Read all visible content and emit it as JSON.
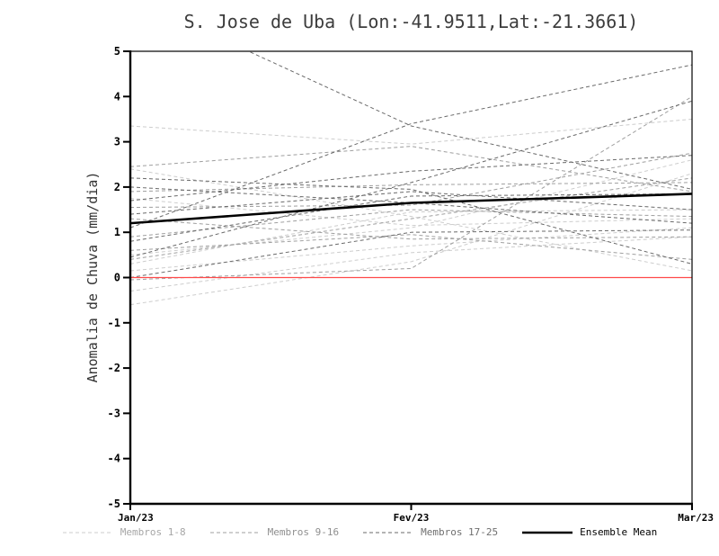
{
  "title": "S. Jose de Uba (Lon:-41.9511,Lat:-21.3661)",
  "chart_data": {
    "type": "line",
    "title": "S. Jose de Uba (Lon:-41.9511,Lat:-21.3661)",
    "xlabel": "",
    "ylabel": "Anomalia de Chuva (mm/dia)",
    "x_categories": [
      "Jan/23",
      "Fev/23",
      "Mar/23"
    ],
    "ylim": [
      -5,
      5
    ],
    "ytick_interval": 1,
    "grid": false,
    "zero_line": {
      "y": 0,
      "color": "#ff4a4a"
    },
    "groups": [
      {
        "name": "Membros 1-8",
        "color": "#cdcdcd",
        "dash": "4 3",
        "series": [
          [
            3.35,
            2.95,
            3.5
          ],
          [
            2.4,
            1.35,
            0.15
          ],
          [
            1.75,
            1.15,
            1.3
          ],
          [
            0.5,
            1.1,
            2.6
          ],
          [
            0.15,
            0.7,
            1.1
          ],
          [
            -0.3,
            0.55,
            0.9
          ],
          [
            -0.6,
            0.35,
            2.3
          ],
          [
            0.3,
            1.45,
            1.5
          ]
        ]
      },
      {
        "name": "Membros 9-16",
        "color": "#9f9f9f",
        "dash": "4 3",
        "series": [
          [
            2.45,
            2.9,
            1.9
          ],
          [
            1.9,
            2.05,
            2.1
          ],
          [
            1.55,
            1.6,
            2.75
          ],
          [
            0.9,
            1.5,
            1.35
          ],
          [
            0.6,
            0.95,
            0.4
          ],
          [
            0.4,
            1.3,
            2.2
          ],
          [
            1.3,
            0.85,
            0.9
          ],
          [
            -0.05,
            0.2,
            4.0
          ]
        ]
      },
      {
        "name": "Membros 17-25",
        "color": "#6a6a6a",
        "dash": "4 3",
        "series": [
          [
            6.2,
            3.35,
            1.95
          ],
          [
            1.7,
            2.35,
            2.7
          ],
          [
            1.4,
            1.9,
            1.5
          ],
          [
            0.8,
            1.8,
            1.85
          ],
          [
            2.0,
            1.65,
            1.2
          ],
          [
            0.45,
            2.1,
            3.9
          ],
          [
            1.1,
            3.4,
            4.7
          ],
          [
            2.2,
            1.95,
            0.3
          ],
          [
            0.0,
            1.0,
            1.05
          ]
        ]
      }
    ],
    "mean": {
      "name": "Ensemble Mean",
      "color": "#000000",
      "values": [
        1.2,
        1.65,
        1.85
      ]
    },
    "legend_position": "bottom"
  },
  "legend": {
    "items": [
      {
        "label": "Membros 1-8",
        "line_color": "#cdcdcd",
        "dash": "4 3",
        "width": 1,
        "label_color": "#a6a6a6"
      },
      {
        "label": "Membros 9-16",
        "line_color": "#9f9f9f",
        "dash": "4 3",
        "width": 1,
        "label_color": "#8f8f8f"
      },
      {
        "label": "Membros 17-25",
        "line_color": "#6a6a6a",
        "dash": "4 3",
        "width": 1,
        "label_color": "#6f6f6f"
      },
      {
        "label": "Ensemble Mean",
        "line_color": "#000000",
        "dash": "",
        "width": 2.6,
        "label_color": "#000000"
      }
    ]
  }
}
